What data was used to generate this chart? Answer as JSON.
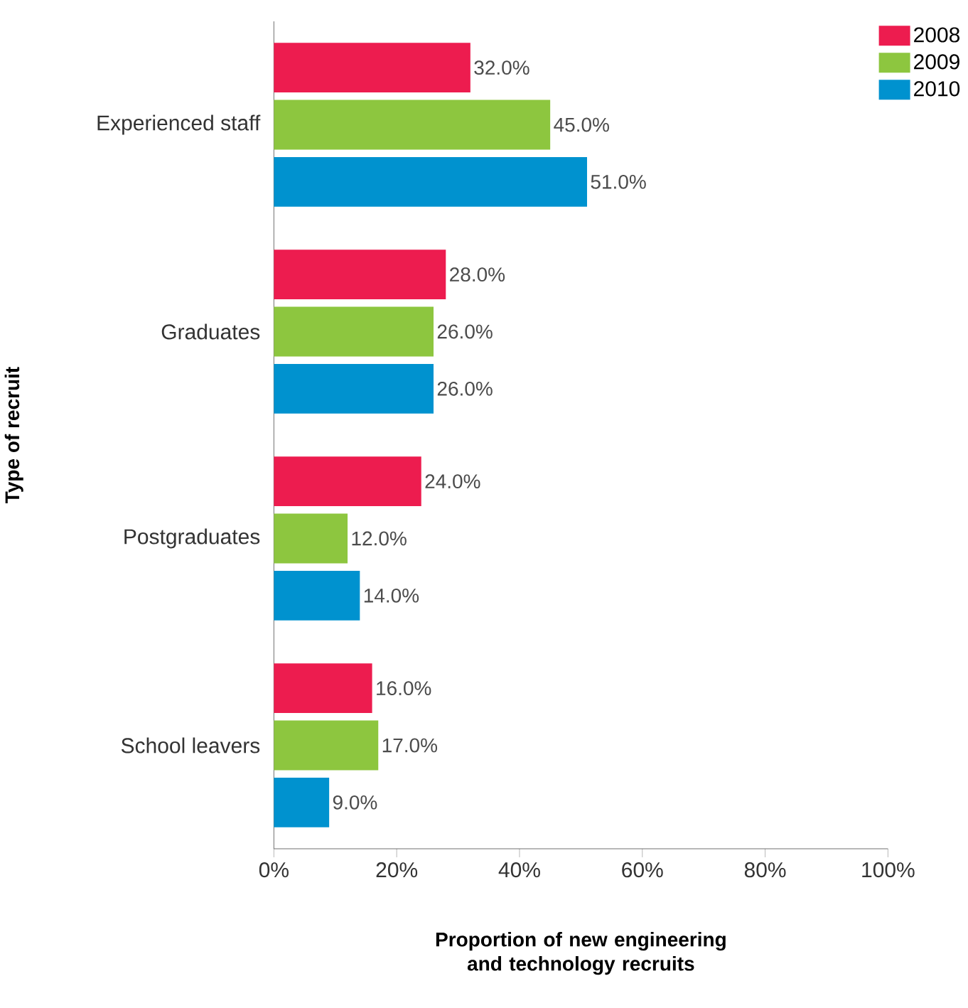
{
  "chart_data": {
    "type": "bar",
    "orientation": "horizontal",
    "categories": [
      "Experienced staff",
      "Graduates",
      "Postgraduates",
      "School leavers"
    ],
    "series": [
      {
        "name": "2008",
        "color": "#ed1c4f",
        "values": [
          32,
          28,
          24,
          16
        ],
        "value_labels": [
          "32.0%",
          "28.0%",
          "24.0%",
          "16.0%"
        ]
      },
      {
        "name": "2009",
        "color": "#8dc63f",
        "values": [
          45,
          26,
          12,
          17
        ],
        "value_labels": [
          "45.0%",
          "26.0%",
          "12.0%",
          "17.0%"
        ]
      },
      {
        "name": "2010",
        "color": "#0092cf",
        "values": [
          51,
          26,
          14,
          9
        ],
        "value_labels": [
          "51.0%",
          "26.0%",
          "14.0%",
          "9.0%"
        ]
      }
    ],
    "xlim": [
      0,
      100
    ],
    "xticks": [
      {
        "value": 0,
        "label": "0%"
      },
      {
        "value": 20,
        "label": "20%"
      },
      {
        "value": 40,
        "label": "40%"
      },
      {
        "value": 60,
        "label": "60%"
      },
      {
        "value": 80,
        "label": "80%"
      },
      {
        "value": 100,
        "label": "100%"
      }
    ],
    "xlabel": "Proportion of new engineering and technology recruits",
    "ylabel": "Type of recruit",
    "legend": "top right"
  }
}
